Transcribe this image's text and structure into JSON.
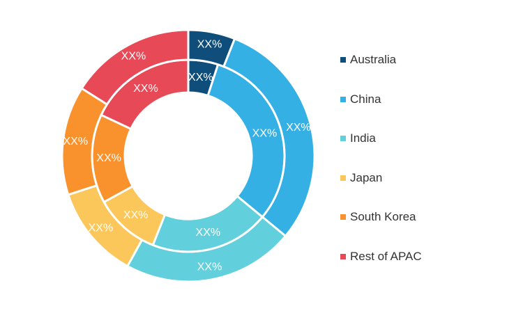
{
  "chart_data": {
    "type": "pie",
    "categories": [
      "Australia",
      "China",
      "India",
      "Japan",
      "South Korea",
      "Rest of APAC"
    ],
    "colors": [
      "#0f4d7a",
      "#35b0e4",
      "#62d0dc",
      "#fcc75a",
      "#f9912c",
      "#e84957"
    ],
    "series": [
      {
        "values": [
          5,
          31,
          20,
          11,
          15,
          18
        ],
        "labels": [
          "XX%",
          "XX%",
          "XX%",
          "XX%",
          "XX%",
          "XX%"
        ]
      },
      {
        "values": [
          6,
          30,
          22,
          12,
          14,
          16
        ],
        "labels": [
          "XX%",
          "XX%",
          "XX%",
          "XX%",
          "XX%",
          "XX%"
        ]
      }
    ],
    "legend_position": "right"
  }
}
